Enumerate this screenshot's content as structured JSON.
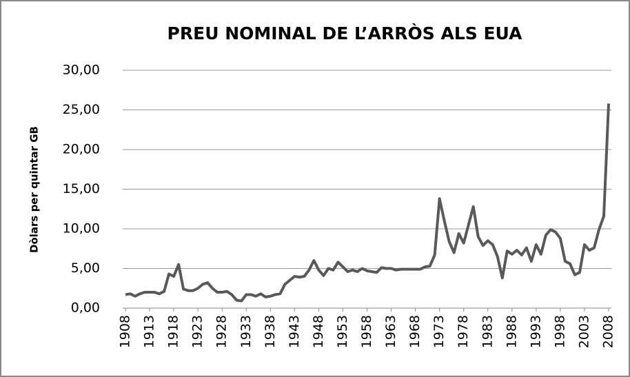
{
  "chart_data": {
    "type": "line",
    "title": "PREU NOMINAL DE L’ARRÒS ALS EUA",
    "y_label": "Dòlars per quintar GB",
    "x": [
      1908,
      1909,
      1910,
      1911,
      1912,
      1913,
      1914,
      1915,
      1916,
      1917,
      1918,
      1919,
      1920,
      1921,
      1922,
      1923,
      1924,
      1925,
      1926,
      1927,
      1928,
      1929,
      1930,
      1931,
      1932,
      1933,
      1934,
      1935,
      1936,
      1937,
      1938,
      1939,
      1940,
      1941,
      1942,
      1943,
      1944,
      1945,
      1946,
      1947,
      1948,
      1949,
      1950,
      1951,
      1952,
      1953,
      1954,
      1955,
      1956,
      1957,
      1958,
      1959,
      1960,
      1961,
      1962,
      1963,
      1964,
      1965,
      1966,
      1967,
      1968,
      1969,
      1970,
      1971,
      1972,
      1973,
      1974,
      1975,
      1976,
      1977,
      1978,
      1979,
      1980,
      1981,
      1982,
      1983,
      1984,
      1985,
      1986,
      1987,
      1988,
      1989,
      1990,
      1991,
      1992,
      1993,
      1994,
      1995,
      1996,
      1997,
      1998,
      1999,
      2000,
      2001,
      2002,
      2003,
      2004,
      2005,
      2006,
      2007,
      2008
    ],
    "series": [
      {
        "name": "Preu",
        "color": "#595959",
        "values": [
          1.7,
          1.8,
          1.5,
          1.8,
          2.0,
          2.0,
          2.0,
          1.8,
          2.1,
          4.3,
          4.0,
          5.5,
          2.4,
          2.2,
          2.2,
          2.5,
          3.0,
          3.2,
          2.5,
          2.0,
          2.0,
          2.1,
          1.7,
          1.0,
          0.9,
          1.7,
          1.7,
          1.5,
          1.8,
          1.4,
          1.5,
          1.7,
          1.8,
          3.0,
          3.5,
          4.0,
          3.9,
          4.0,
          4.8,
          6.0,
          4.8,
          4.1,
          5.0,
          4.8,
          5.8,
          5.2,
          4.6,
          4.8,
          4.6,
          5.0,
          4.7,
          4.6,
          4.5,
          5.1,
          5.0,
          5.0,
          4.8,
          4.9,
          4.9,
          4.9,
          4.9,
          4.9,
          5.2,
          5.3,
          6.7,
          13.8,
          11.0,
          8.4,
          7.0,
          9.4,
          8.2,
          10.5,
          12.8,
          9.0,
          7.9,
          8.5,
          8.0,
          6.5,
          3.8,
          7.2,
          6.8,
          7.3,
          6.7,
          7.6,
          5.9,
          8.0,
          6.8,
          9.2,
          9.9,
          9.6,
          8.8,
          5.9,
          5.6,
          4.2,
          4.5,
          8.0,
          7.3,
          7.6,
          9.9,
          11.6,
          25.8
        ]
      }
    ],
    "xlim": [
      1908,
      2008
    ],
    "xticks": [
      1908,
      1913,
      1918,
      1923,
      1928,
      1933,
      1938,
      1943,
      1948,
      1953,
      1958,
      1963,
      1968,
      1973,
      1978,
      1983,
      1988,
      1993,
      1998,
      2003,
      2008
    ],
    "ylim": [
      0,
      30
    ],
    "yticks": [
      {
        "value": 0,
        "label": "0,00"
      },
      {
        "value": 5,
        "label": "5,00"
      },
      {
        "value": 10,
        "label": "10,00"
      },
      {
        "value": 15,
        "label": "15,00"
      },
      {
        "value": 20,
        "label": "20,00"
      },
      {
        "value": 25,
        "label": "25,00"
      },
      {
        "value": 30,
        "label": "30,00"
      }
    ],
    "grid": true
  }
}
